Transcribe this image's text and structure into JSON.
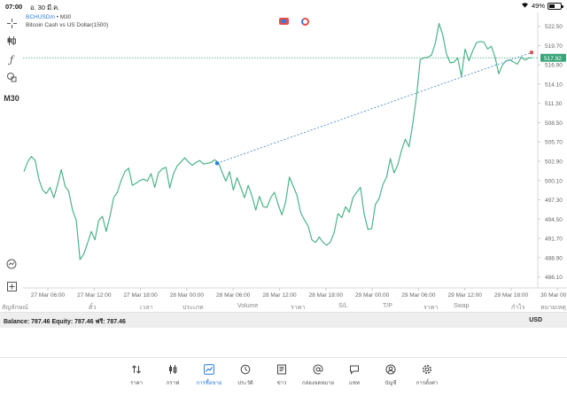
{
  "status_bar": {
    "time": "07:00",
    "date": "อ. 30 มี.ค.",
    "battery_pct": "49%",
    "battery_level": 0.49
  },
  "left_toolbar": {
    "timeframe_label": "M30",
    "icons": [
      "crosshair-icon",
      "candlestick-icon",
      "function-icon",
      "shapes-icon",
      "timeframe",
      "chart-search-icon",
      "add-icon"
    ]
  },
  "chart": {
    "symbol": "BCHUSDm",
    "timeframe_suffix": "• M30",
    "description": "Bitcoin Cash vs US Dollar(1500)",
    "current_price": "517.92",
    "colors": {
      "line": "#4cb38a",
      "price_line": "#3aa57a",
      "price_label_bg": "#3aa57a",
      "trend_line": "#3b7fc4",
      "dot_left": "#2a7de1",
      "dot_right": "#e05050"
    }
  },
  "chart_data": {
    "type": "line",
    "y_ticks": [
      "522.50",
      "519.70",
      "516.90",
      "514.10",
      "511.30",
      "508.50",
      "505.70",
      "502.90",
      "500.10",
      "497.30",
      "494.50",
      "491.70",
      "488.90",
      "486.10"
    ],
    "x_ticks": [
      "27 Mar 06:00",
      "27 Mar 12:00",
      "27 Mar 18:00",
      "28 Mar 00:00",
      "28 Mar 06:00",
      "28 Mar 12:00",
      "28 Mar 18:00",
      "29 Mar 00:00",
      "29 Mar 06:00",
      "29 Mar 12:00",
      "29 Mar 18:00",
      "30 Mar 00:00"
    ],
    "ylim": [
      484.5,
      524.0
    ],
    "series": [
      {
        "values": [
          501.4,
          502.8,
          503.6,
          503.0,
          500.3,
          498.7,
          498.2,
          499.1,
          497.6,
          499.5,
          501.7,
          499.3,
          498.5,
          495.8,
          494.3,
          488.6,
          489.4,
          491.0,
          492.7,
          491.5,
          494.3,
          494.9,
          492.7,
          494.9,
          497.6,
          498.4,
          500.1,
          501.4,
          501.9,
          499.4,
          499.7,
          500.1,
          500.3,
          500.0,
          501.1,
          499.1,
          501.2,
          501.8,
          502.0,
          499.0,
          501.1,
          502.2,
          502.8,
          503.4,
          502.8,
          502.3,
          502.7,
          503.0,
          502.5,
          502.6,
          502.7,
          503.1,
          502.7,
          501.3,
          500.0,
          501.4,
          498.7,
          500.5,
          499.1,
          497.6,
          499.4,
          497.8,
          495.8,
          497.8,
          496.3,
          496.2,
          497.6,
          498.4,
          496.6,
          495.1,
          497.0,
          500.6,
          499.3,
          498.0,
          495.5,
          494.4,
          493.5,
          491.5,
          491.1,
          491.9,
          491.1,
          490.7,
          491.2,
          492.6,
          495.3,
          494.7,
          496.3,
          495.5,
          497.6,
          498.4,
          499.1,
          495.2,
          493.0,
          493.1,
          496.6,
          497.5,
          499.5,
          500.6,
          503.3,
          501.2,
          502.4,
          504.5,
          506.1,
          505.0,
          508.3,
          512.4,
          517.7,
          517.9,
          518.0,
          518.3,
          520.0,
          522.9,
          521.3,
          518.5,
          517.2,
          517.3,
          517.9,
          515.2,
          519.2,
          517.5,
          518.9,
          520.1,
          520.3,
          520.2,
          519.2,
          519.6,
          518.0,
          515.6,
          516.9,
          517.5,
          517.6,
          517.3,
          517.0,
          518.0,
          517.6,
          517.9,
          517.92
        ]
      }
    ],
    "trend_line": [
      [
        502.6,
        518.7
      ]
    ],
    "grid": false,
    "legend": "none"
  },
  "positions_header": {
    "columns": [
      "สัญลักษณ์",
      "ตั๋ว",
      "เวลา",
      "ประเภท",
      "Volume",
      "ราคา",
      "S/L",
      "T/P",
      "ราคา",
      "Swap",
      "กำไร",
      "หมายเหตุ"
    ]
  },
  "balance_bar": {
    "text": "Balance: 787.46 Equity: 787.46 ฟรี: 787.46",
    "currency": "USD"
  },
  "bottom_nav": {
    "items": [
      {
        "icon": "quotes-icon",
        "label": "ราคา"
      },
      {
        "icon": "chart-icon",
        "label": "กราฟ"
      },
      {
        "icon": "trade-icon",
        "label": "การซื้อขาย",
        "active": true
      },
      {
        "icon": "history-icon",
        "label": "ประวัติ"
      },
      {
        "icon": "news-icon",
        "label": "ข่าว"
      },
      {
        "icon": "mailbox-icon",
        "label": "กล่องจดหมาย"
      },
      {
        "icon": "chat-icon",
        "label": "แชท"
      },
      {
        "icon": "accounts-icon",
        "label": "บัญชี"
      },
      {
        "icon": "settings-icon",
        "label": "การตั้งค่า"
      }
    ]
  }
}
